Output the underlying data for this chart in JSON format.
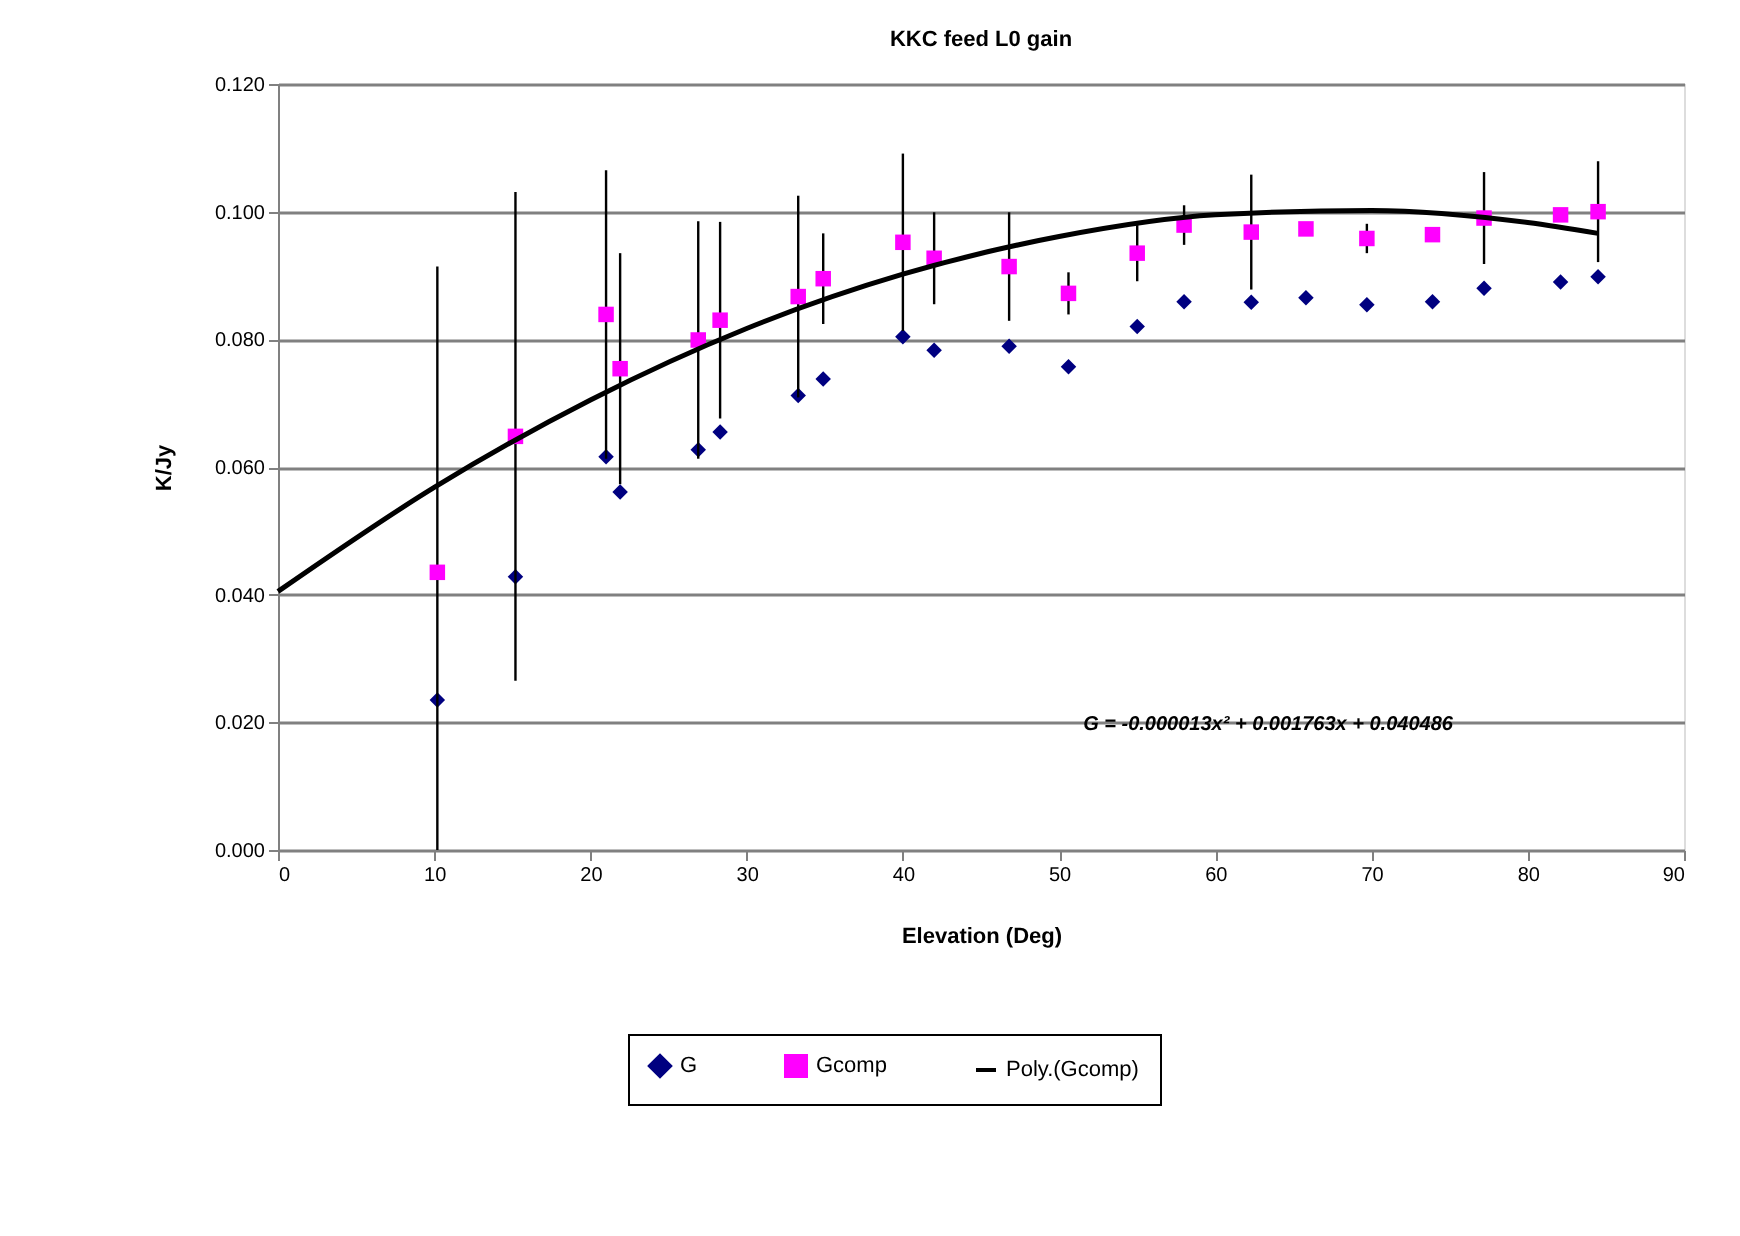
{
  "chart_data": {
    "type": "scatter",
    "title": "KKC feed L0 gain",
    "xlabel": "Elevation (Deg)",
    "ylabel": "K/Jy",
    "xlim": [
      0,
      90
    ],
    "xticks": [
      0,
      10,
      20,
      30,
      40,
      50,
      60,
      70,
      80,
      90
    ],
    "ylim": [
      0,
      0.12
    ],
    "yticks": [
      {
        "value": 0,
        "label": "0.000"
      },
      {
        "value": 0.02,
        "label": "0.020"
      },
      {
        "value": 0.04,
        "label": "0.040"
      },
      {
        "value": 0.06,
        "label": "0.060"
      },
      {
        "value": 0.08,
        "label": "0.080"
      },
      {
        "value": 0.1,
        "label": "0.100"
      },
      {
        "value": 0.12,
        "label": "0.120"
      }
    ],
    "grid": "y",
    "legend": "bottom",
    "x": [
      10.2,
      15.2,
      21.0,
      21.9,
      26.9,
      28.3,
      33.3,
      34.9,
      40.0,
      42.0,
      46.8,
      50.6,
      55.0,
      58.0,
      62.3,
      65.8,
      69.7,
      73.9,
      77.2,
      82.1,
      84.5
    ],
    "series": [
      {
        "name": "G",
        "marker": "diamond",
        "color": "#000080",
        "values": [
          0.0235,
          0.0428,
          0.0616,
          0.0561,
          0.0627,
          0.0655,
          0.0712,
          0.0738,
          0.0804,
          0.0783,
          0.0789,
          0.0757,
          0.082,
          0.0859,
          0.0858,
          0.0865,
          0.0854,
          0.0859,
          0.088,
          0.089,
          0.0898
        ]
      },
      {
        "name": "Gcomp",
        "marker": "square",
        "color": "#ff00ff",
        "values": [
          0.0435,
          0.0648,
          0.0839,
          0.0754,
          0.0799,
          0.083,
          0.0867,
          0.0895,
          0.0952,
          0.0927,
          0.0914,
          0.0872,
          0.0935,
          0.0979,
          0.0968,
          0.0973,
          0.0958,
          0.0964,
          0.099,
          0.0995,
          0.1
        ],
        "errors": [
          [
            0.0,
            0.0914
          ],
          0.0383,
          0.0226,
          0.0181,
          0.0186,
          0.0154,
          0.0158,
          0.0071,
          0.0139,
          0.0072,
          0.0085,
          0.0033,
          0.0044,
          0.0031,
          0.009,
          null,
          0.0023,
          null,
          0.0072,
          null,
          0.0079
        ]
      },
      {
        "name": "Poly.(Gcomp)",
        "type": "line",
        "marker": "none",
        "line_style": "solid",
        "color": "#000000",
        "x": [
          0,
          10,
          20,
          30,
          40,
          50,
          60,
          70,
          80,
          84.5
        ],
        "values": [
          0.0405,
          0.0568,
          0.0705,
          0.0817,
          0.0902,
          0.0961,
          0.0995,
          0.1002,
          0.0983,
          0.0966
        ]
      }
    ],
    "annotations": [
      "G = -0.000013x² + 0.001763x + 0.040486"
    ]
  }
}
